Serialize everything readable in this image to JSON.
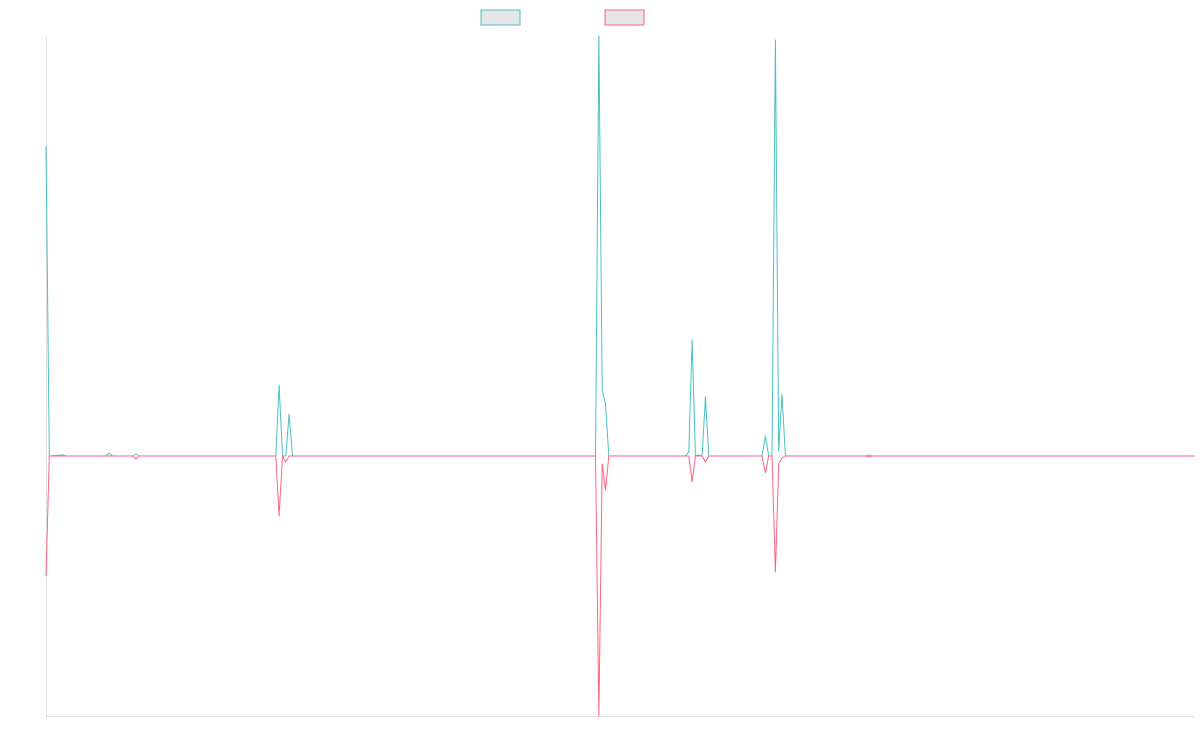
{
  "chart_data": {
    "type": "line",
    "title": "",
    "xlabel": "",
    "ylabel": "",
    "x_range": [
      0,
      345
    ],
    "ylim": [
      -260,
      420
    ],
    "grid": false,
    "legend_position": "top",
    "legend_box_fill": "#e6e6e6",
    "series": [
      {
        "color": "#4bc0c0",
        "x": [
          0,
          1,
          5,
          6,
          18,
          19,
          20,
          26,
          27,
          28,
          69,
          70,
          71,
          72,
          73,
          74,
          165,
          166,
          167,
          168,
          169,
          192,
          193,
          194,
          195,
          196,
          197,
          198,
          199,
          215,
          216,
          217,
          218,
          219,
          220,
          221,
          222,
          246,
          247,
          248,
          345
        ],
        "y": [
          310,
          0,
          1,
          0,
          0,
          3,
          0,
          0,
          2,
          0,
          0,
          71,
          0,
          0,
          42,
          0,
          0,
          420,
          66,
          52,
          0,
          0,
          4,
          116,
          0,
          1,
          0,
          59,
          0,
          0,
          20,
          0,
          0,
          416,
          5,
          62,
          0,
          0,
          1,
          0,
          0
        ]
      },
      {
        "color": "#ff6384",
        "x": [
          0,
          1,
          26,
          27,
          28,
          69,
          70,
          71,
          72,
          73,
          165,
          166,
          167,
          168,
          169,
          193,
          194,
          195,
          197,
          198,
          199,
          215,
          216,
          217,
          218,
          219,
          220,
          221,
          222,
          246,
          247,
          248,
          345
        ],
        "y": [
          -120,
          0,
          0,
          -3,
          0,
          0,
          -60,
          0,
          -6,
          0,
          0,
          -260,
          -8,
          -34,
          0,
          0,
          -26,
          0,
          0,
          -6,
          0,
          0,
          -17,
          0,
          0,
          -116,
          -8,
          -2,
          0,
          0,
          -1,
          0,
          0
        ]
      }
    ]
  }
}
